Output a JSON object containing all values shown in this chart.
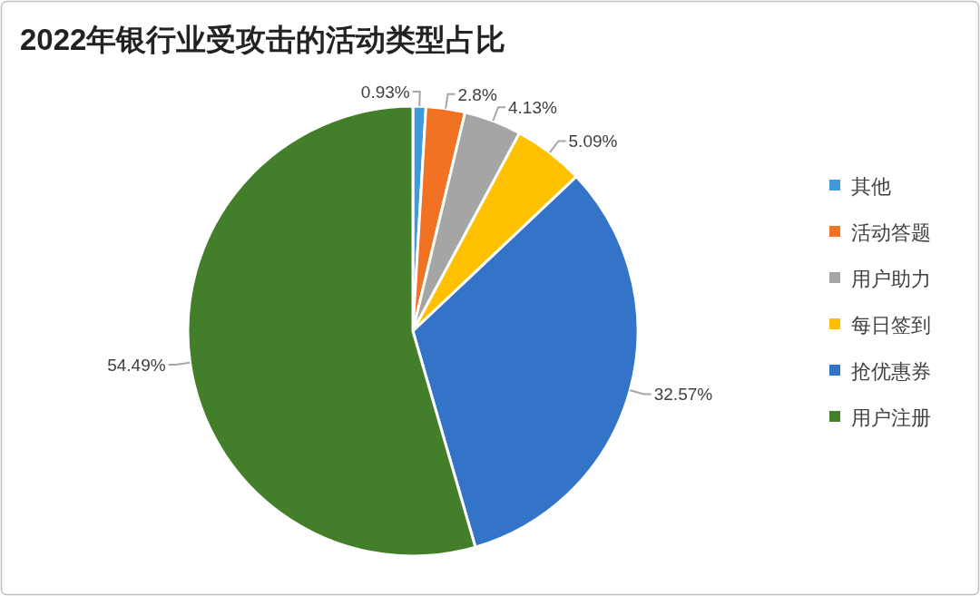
{
  "chart_data": {
    "type": "pie",
    "title": "2022年银行业受攻击的活动类型占比",
    "categories": [
      "其他",
      "活动答题",
      "用户助力",
      "每日签到",
      "抢优惠券",
      "用户注册"
    ],
    "values": [
      0.93,
      2.8,
      4.13,
      5.09,
      32.57,
      54.49
    ],
    "colors": [
      "#3d9bdc",
      "#f07222",
      "#a5a5a5",
      "#ffc000",
      "#3474c8",
      "#437f2a"
    ],
    "value_labels": [
      "0.93%",
      "2.8%",
      "4.13%",
      "5.09%",
      "32.57%",
      "54.49%"
    ],
    "legend": "right"
  }
}
